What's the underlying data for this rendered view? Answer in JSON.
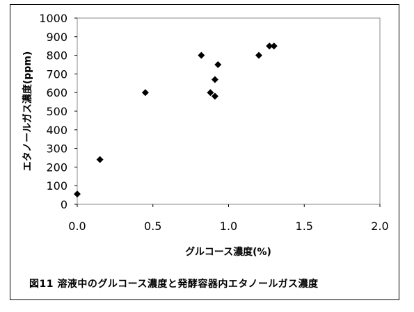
{
  "chart_data": {
    "type": "scatter",
    "title": "",
    "xlabel": "グルコース濃度(%)",
    "ylabel": "エタノールガス濃度(ppm)",
    "xlim": [
      0.0,
      2.0
    ],
    "ylim": [
      0,
      1000
    ],
    "xticks": [
      "0.0",
      "0.5",
      "1.0",
      "1.5",
      "2.0"
    ],
    "yticks": [
      "0",
      "100",
      "200",
      "300",
      "400",
      "500",
      "600",
      "700",
      "800",
      "900",
      "1000"
    ],
    "grid": false,
    "legend": "none",
    "marker_color": "#000000",
    "marker": "diamond",
    "points": [
      {
        "x": 0.0,
        "y": 55
      },
      {
        "x": 0.15,
        "y": 240
      },
      {
        "x": 0.45,
        "y": 600
      },
      {
        "x": 0.82,
        "y": 800
      },
      {
        "x": 0.88,
        "y": 600
      },
      {
        "x": 0.91,
        "y": 670
      },
      {
        "x": 0.91,
        "y": 580
      },
      {
        "x": 0.93,
        "y": 750
      },
      {
        "x": 1.2,
        "y": 800
      },
      {
        "x": 1.27,
        "y": 850
      },
      {
        "x": 1.3,
        "y": 850
      }
    ]
  },
  "caption": "図11 溶液中のグルコース濃度と発酵容器内エタノールガス濃度"
}
